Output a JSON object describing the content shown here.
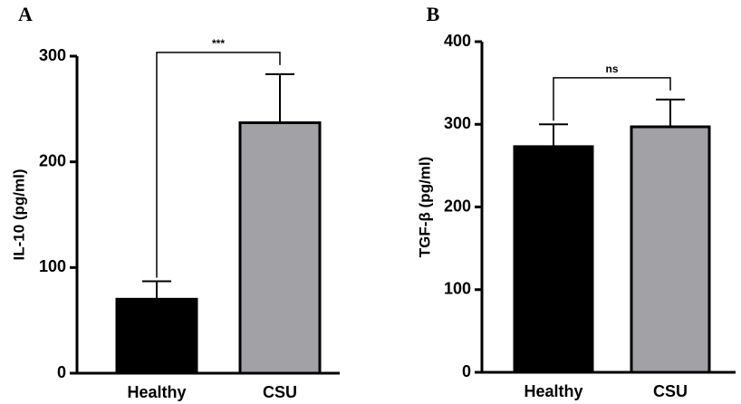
{
  "chart_data": [
    {
      "type": "bar",
      "panel_label": "A",
      "ylabel": "IL-10 (pg/ml)",
      "categories": [
        "Healthy",
        "CSU"
      ],
      "values": [
        70,
        237
      ],
      "errors": [
        17,
        46
      ],
      "colors": [
        "#000000",
        "#a2a2a6"
      ],
      "ylim": [
        0,
        300
      ],
      "yticks": [
        0,
        100,
        200,
        300
      ],
      "annotation": "***"
    },
    {
      "type": "bar",
      "panel_label": "B",
      "ylabel": "TGF-β (pg/ml)",
      "categories": [
        "Healthy",
        "CSU"
      ],
      "values": [
        273,
        297
      ],
      "errors": [
        27,
        33
      ],
      "colors": [
        "#000000",
        "#a2a2a6"
      ],
      "ylim": [
        0,
        400
      ],
      "yticks": [
        0,
        100,
        200,
        300,
        400
      ],
      "annotation": "ns"
    }
  ]
}
